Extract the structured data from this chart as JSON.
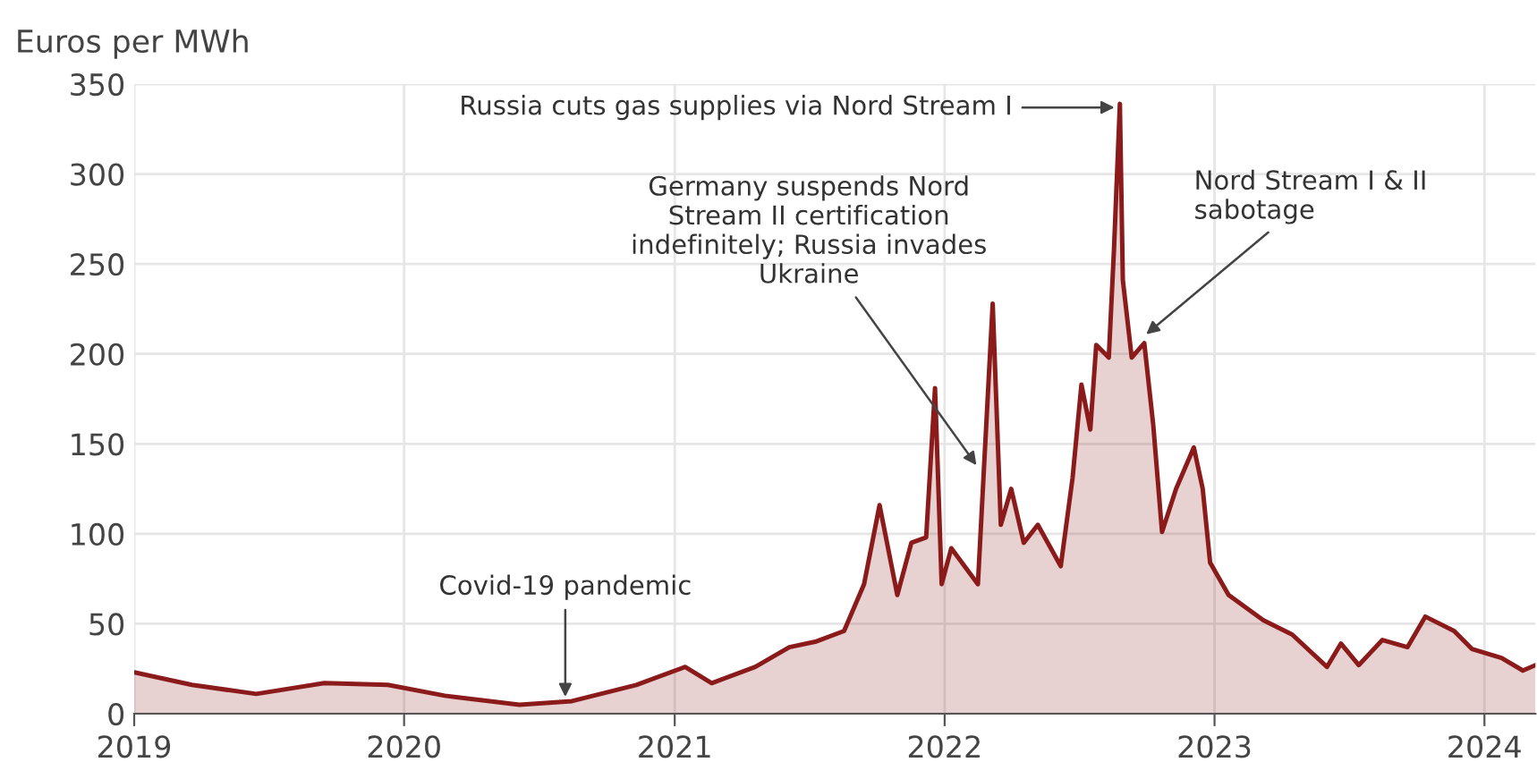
{
  "chart_data": {
    "type": "area",
    "ylabel": "Euros per MWh",
    "x": [
      "2019-01-01",
      "2019-03-20",
      "2019-06-15",
      "2019-09-15",
      "2019-12-10",
      "2020-02-25",
      "2020-06-05",
      "2020-08-15",
      "2020-11-10",
      "2021-01-15",
      "2021-02-20",
      "2021-04-20",
      "2021-06-05",
      "2021-07-10",
      "2021-08-18",
      "2021-09-14",
      "2021-10-05",
      "2021-10-29",
      "2021-11-17",
      "2021-12-07",
      "2021-12-19",
      "2021-12-28",
      "2022-01-10",
      "2022-02-15",
      "2022-02-23",
      "2022-03-07",
      "2022-03-18",
      "2022-04-01",
      "2022-04-18",
      "2022-05-07",
      "2022-06-07",
      "2022-06-23",
      "2022-07-05",
      "2022-07-17",
      "2022-07-25",
      "2022-08-11",
      "2022-08-18",
      "2022-08-26",
      "2022-08-30",
      "2022-09-11",
      "2022-09-28",
      "2022-10-10",
      "2022-10-22",
      "2022-11-10",
      "2022-12-04",
      "2022-12-16",
      "2022-12-26",
      "2023-01-20",
      "2023-03-08",
      "2023-04-16",
      "2023-06-02",
      "2023-06-21",
      "2023-07-15",
      "2023-08-16",
      "2023-09-19",
      "2023-10-13",
      "2023-11-21",
      "2023-12-15",
      "2024-01-24",
      "2024-02-22",
      "2024-03-10"
    ],
    "series": [
      {
        "color": "#8b1a1a",
        "values": [
          23,
          16,
          11,
          17,
          16,
          10,
          5,
          7,
          16,
          26,
          17,
          26,
          37,
          40,
          46,
          72,
          116,
          66,
          95,
          98,
          181,
          72,
          92,
          72,
          135,
          228,
          105,
          125,
          95,
          105,
          82,
          131,
          183,
          158,
          205,
          198,
          258,
          339,
          241,
          198,
          206,
          161,
          101,
          125,
          148,
          125,
          84,
          66,
          52,
          44,
          26,
          39,
          27,
          41,
          37,
          54,
          46,
          36,
          31,
          24,
          27
        ]
      }
    ],
    "xlim": [
      "2019-01-01",
      "2024-03-10"
    ],
    "xticks": [
      {
        "value": "2019-01-01",
        "label": "2019"
      },
      {
        "value": "2020-01-01",
        "label": "2020"
      },
      {
        "value": "2021-01-01",
        "label": "2021"
      },
      {
        "value": "2022-01-01",
        "label": "2022"
      },
      {
        "value": "2023-01-01",
        "label": "2023"
      },
      {
        "value": "2024-01-01",
        "label": "2024"
      }
    ],
    "ylim": [
      0,
      350
    ],
    "yticks": [
      0,
      50,
      100,
      150,
      200,
      250,
      300,
      350
    ],
    "grid": true,
    "legend": false,
    "annotations": [
      {
        "text": "Covid-19 pandemic",
        "x": "2020-08-06",
        "y": 8
      },
      {
        "text": "Russia cuts gas supplies via Nord Stream I",
        "x": "2022-08-22",
        "y": 337
      },
      {
        "text": "Germany suspends Nord\nStream II certification\nindefinitely; Russia invades\nUkraine",
        "x": "2022-02-15",
        "y": 137
      },
      {
        "text": "Nord Stream I & II\nsabotage",
        "x": "2022-09-28",
        "y": 210
      }
    ]
  }
}
